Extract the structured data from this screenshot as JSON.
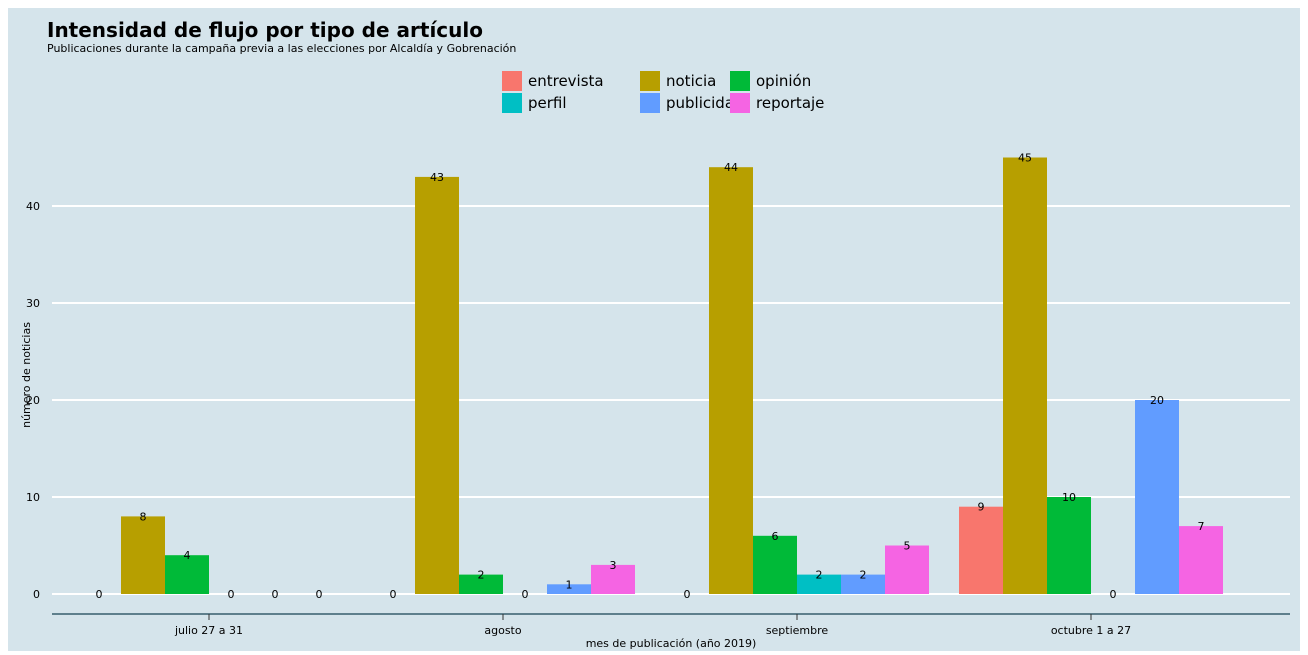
{
  "chart_data": {
    "type": "bar",
    "title": "Intensidad de flujo por tipo de artículo",
    "subtitle": "Publicaciones durante la campaña previa a las elecciones por Alcaldía y Gobrenación",
    "xlabel": "mes de publicación (año 2019)",
    "ylabel": "número de noticias",
    "categories": [
      "julio 27 a 31",
      "agosto",
      "septiembre",
      "octubre 1 a 27"
    ],
    "ylim": [
      0,
      47
    ],
    "yticks": [
      0,
      10,
      20,
      30,
      40
    ],
    "grid": true,
    "legend_position": "top",
    "series": [
      {
        "name": "entrevista",
        "color": "#f8766d",
        "values": [
          0,
          0,
          0,
          9
        ]
      },
      {
        "name": "noticia",
        "color": "#b79f00",
        "values": [
          8,
          43,
          44,
          45
        ]
      },
      {
        "name": "opinión",
        "color": "#00ba38",
        "values": [
          4,
          2,
          6,
          10
        ]
      },
      {
        "name": "perfil",
        "color": "#00bfc4",
        "values": [
          0,
          0,
          2,
          0
        ]
      },
      {
        "name": "publicidad",
        "color": "#619cff",
        "values": [
          0,
          1,
          2,
          20
        ]
      },
      {
        "name": "reportaje",
        "color": "#f564e3",
        "values": [
          0,
          3,
          5,
          7
        ]
      }
    ]
  }
}
